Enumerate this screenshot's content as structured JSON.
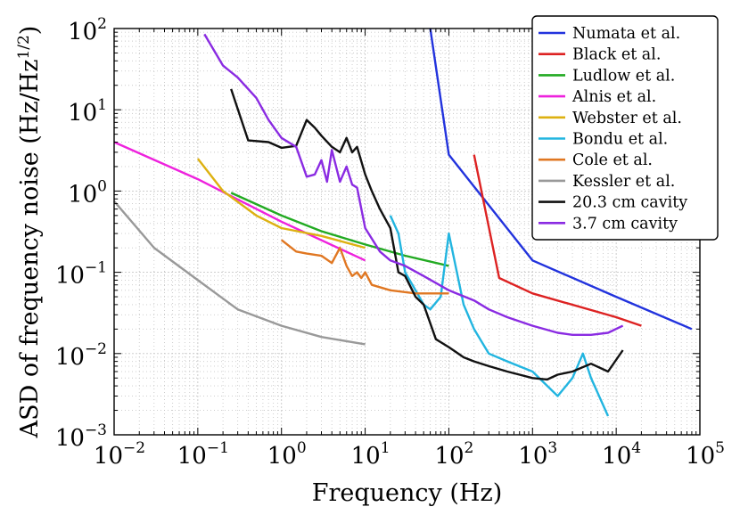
{
  "chart_data": {
    "type": "line",
    "title": "",
    "xlabel": "Frequency (Hz)",
    "ylabel": "ASD of frequency noise (Hz/Hz",
    "ylabel_exponent": "1/2",
    "ylabel_close": ")",
    "x_scale": "log",
    "y_scale": "log",
    "xlim": [
      0.01,
      100000
    ],
    "ylim": [
      0.001,
      100
    ],
    "grid": true,
    "legend_position": "top-right",
    "x_ticks": [
      {
        "base": "10",
        "exp": "−2",
        "value": 0.01
      },
      {
        "base": "10",
        "exp": "−1",
        "value": 0.1
      },
      {
        "base": "10",
        "exp": "0",
        "value": 1
      },
      {
        "base": "10",
        "exp": "1",
        "value": 10
      },
      {
        "base": "10",
        "exp": "2",
        "value": 100
      },
      {
        "base": "10",
        "exp": "3",
        "value": 1000
      },
      {
        "base": "10",
        "exp": "4",
        "value": 10000
      },
      {
        "base": "10",
        "exp": "5",
        "value": 100000
      }
    ],
    "y_ticks": [
      {
        "base": "10",
        "exp": "−3",
        "value": 0.001
      },
      {
        "base": "10",
        "exp": "−2",
        "value": 0.01
      },
      {
        "base": "10",
        "exp": "−1",
        "value": 0.1
      },
      {
        "base": "10",
        "exp": "0",
        "value": 1
      },
      {
        "base": "10",
        "exp": "1",
        "value": 10
      },
      {
        "base": "10",
        "exp": "2",
        "value": 100
      }
    ],
    "series": [
      {
        "name": "Numata et al.",
        "color": "#2233dd",
        "x": [
          60,
          100,
          1000,
          10000,
          80000
        ],
        "y": [
          100,
          2.8,
          0.14,
          0.05,
          0.02
        ]
      },
      {
        "name": "Black et al.",
        "color": "#dd2222",
        "x": [
          200,
          400,
          1000,
          10000,
          20000
        ],
        "y": [
          2.8,
          0.085,
          0.055,
          0.028,
          0.022
        ]
      },
      {
        "name": "Ludlow et al.",
        "color": "#22aa22",
        "x": [
          0.25,
          1,
          3,
          10,
          30,
          100
        ],
        "y": [
          0.95,
          0.5,
          0.32,
          0.22,
          0.16,
          0.12
        ]
      },
      {
        "name": "Alnis et al.",
        "color": "#ee22dd",
        "x": [
          0.01,
          0.1,
          1,
          10
        ],
        "y": [
          4.0,
          1.4,
          0.42,
          0.14
        ]
      },
      {
        "name": "Webster et al.",
        "color": "#ddb111",
        "x": [
          0.1,
          0.2,
          0.5,
          1,
          3,
          10
        ],
        "y": [
          2.5,
          1.0,
          0.5,
          0.35,
          0.28,
          0.2
        ]
      },
      {
        "name": "Bondu et al.",
        "color": "#22b5e0",
        "x": [
          20,
          25,
          30,
          40,
          50,
          60,
          80,
          100,
          150,
          200,
          300,
          500,
          1000,
          2000,
          3000,
          4000,
          5000,
          8000
        ],
        "y": [
          0.5,
          0.3,
          0.1,
          0.06,
          0.04,
          0.035,
          0.05,
          0.3,
          0.04,
          0.02,
          0.01,
          0.008,
          0.006,
          0.003,
          0.005,
          0.01,
          0.005,
          0.0017
        ]
      },
      {
        "name": "Cole et al.",
        "color": "#e07722",
        "x": [
          1,
          1.5,
          2,
          3,
          4,
          5,
          6,
          7,
          8,
          9,
          10,
          12,
          20,
          40,
          80,
          100
        ],
        "y": [
          0.25,
          0.18,
          0.17,
          0.16,
          0.13,
          0.2,
          0.12,
          0.09,
          0.1,
          0.085,
          0.1,
          0.07,
          0.06,
          0.055,
          0.055,
          0.055
        ]
      },
      {
        "name": "Kessler et al.",
        "color": "#999999",
        "x": [
          0.01,
          0.03,
          0.1,
          0.3,
          1,
          3,
          10
        ],
        "y": [
          0.75,
          0.2,
          0.08,
          0.035,
          0.022,
          0.016,
          0.013
        ]
      },
      {
        "name": "20.3 cm cavity",
        "color": "#111111",
        "x": [
          0.25,
          0.4,
          0.7,
          1,
          1.5,
          2,
          2.5,
          3,
          4,
          5,
          6,
          7,
          8,
          10,
          12,
          15,
          20,
          25,
          30,
          40,
          50,
          70,
          100,
          150,
          200,
          300,
          500,
          700,
          1000,
          1500,
          2000,
          3000,
          5000,
          8000,
          12000
        ],
        "y": [
          18,
          4.2,
          4.0,
          3.4,
          3.6,
          7.5,
          6.0,
          4.8,
          3.5,
          3.0,
          4.5,
          3.0,
          3.5,
          1.6,
          1.0,
          0.6,
          0.35,
          0.1,
          0.09,
          0.05,
          0.04,
          0.015,
          0.012,
          0.009,
          0.008,
          0.007,
          0.006,
          0.0055,
          0.005,
          0.0048,
          0.0055,
          0.006,
          0.0075,
          0.006,
          0.011
        ]
      },
      {
        "name": "3.7 cm cavity",
        "color": "#8a2be2",
        "x": [
          0.12,
          0.2,
          0.3,
          0.5,
          0.7,
          1,
          1.5,
          2,
          2.5,
          3,
          3.5,
          4,
          5,
          6,
          7,
          8,
          10,
          15,
          20,
          30,
          50,
          100,
          200,
          300,
          500,
          1000,
          2000,
          3000,
          5000,
          8000,
          12000
        ],
        "y": [
          85,
          35,
          25,
          14,
          7.5,
          4.5,
          3.5,
          1.5,
          1.6,
          2.4,
          1.3,
          3.2,
          1.3,
          2.0,
          1.2,
          1.1,
          0.35,
          0.18,
          0.14,
          0.12,
          0.09,
          0.06,
          0.045,
          0.035,
          0.028,
          0.022,
          0.018,
          0.017,
          0.017,
          0.018,
          0.022
        ]
      }
    ]
  }
}
